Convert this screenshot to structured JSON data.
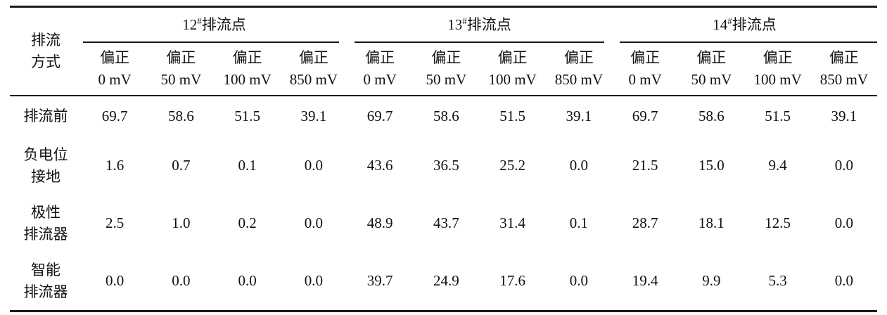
{
  "table": {
    "line_color": "#1a1a1a",
    "corner_header": "排流\n方式",
    "groups": [
      {
        "num": "12",
        "sup": "#",
        "name": "排流点"
      },
      {
        "num": "13",
        "sup": "#",
        "name": "排流点"
      },
      {
        "num": "14",
        "sup": "#",
        "name": "排流点"
      }
    ],
    "sub_headers": [
      "偏正\n0 mV",
      "偏正\n50 mV",
      "偏正\n100 mV",
      "偏正\n850 mV"
    ],
    "rows": [
      {
        "label": "排流前",
        "values": [
          "69.7",
          "58.6",
          "51.5",
          "39.1",
          "69.7",
          "58.6",
          "51.5",
          "39.1",
          "69.7",
          "58.6",
          "51.5",
          "39.1"
        ]
      },
      {
        "label": "负电位\n接地",
        "values": [
          "1.6",
          "0.7",
          "0.1",
          "0.0",
          "43.6",
          "36.5",
          "25.2",
          "0.0",
          "21.5",
          "15.0",
          "9.4",
          "0.0"
        ]
      },
      {
        "label": "极性\n排流器",
        "values": [
          "2.5",
          "1.0",
          "0.2",
          "0.0",
          "48.9",
          "43.7",
          "31.4",
          "0.1",
          "28.7",
          "18.1",
          "12.5",
          "0.0"
        ]
      },
      {
        "label": "智能\n排流器",
        "values": [
          "0.0",
          "0.0",
          "0.0",
          "0.0",
          "39.7",
          "24.9",
          "17.6",
          "0.0",
          "19.4",
          "9.9",
          "5.3",
          "0.0"
        ]
      }
    ]
  }
}
